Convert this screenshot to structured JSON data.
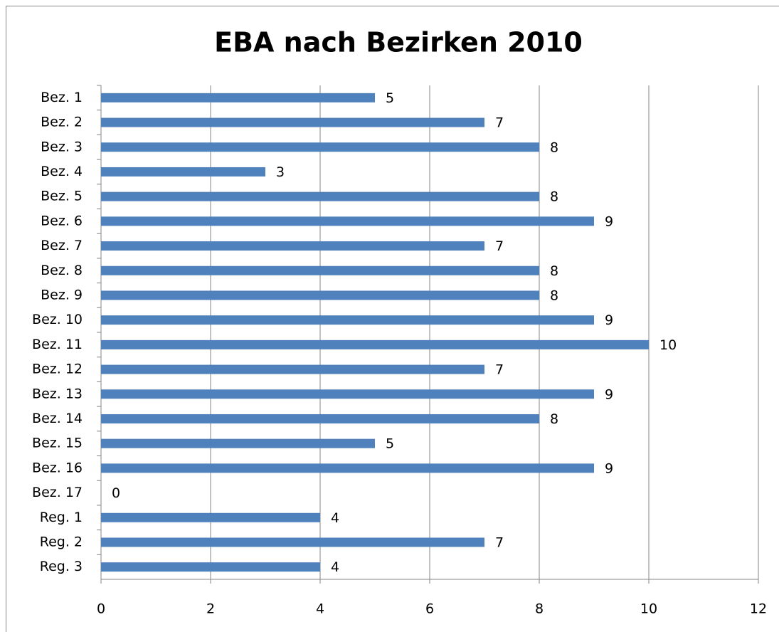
{
  "chart_data": {
    "type": "bar",
    "orientation": "horizontal",
    "title": "EBA nach Bezirken 2010",
    "categories": [
      "Bez. 1",
      "Bez. 2",
      "Bez. 3",
      "Bez. 4",
      "Bez. 5",
      "Bez. 6",
      "Bez. 7",
      "Bez. 8",
      "Bez. 9",
      "Bez. 10",
      "Bez. 11",
      "Bez. 12",
      "Bez. 13",
      "Bez. 14",
      "Bez. 15",
      "Bez. 16",
      "Bez. 17",
      "Reg. 1",
      "Reg. 2",
      "Reg. 3"
    ],
    "values": [
      5,
      7,
      8,
      3,
      8,
      9,
      7,
      8,
      8,
      9,
      10,
      7,
      9,
      8,
      5,
      9,
      0,
      4,
      7,
      4
    ],
    "color": "#4f81bd",
    "xlim": [
      0,
      12
    ],
    "xticks": [
      0,
      2,
      4,
      6,
      8,
      10,
      12
    ],
    "grid": true,
    "data_labels": true
  }
}
